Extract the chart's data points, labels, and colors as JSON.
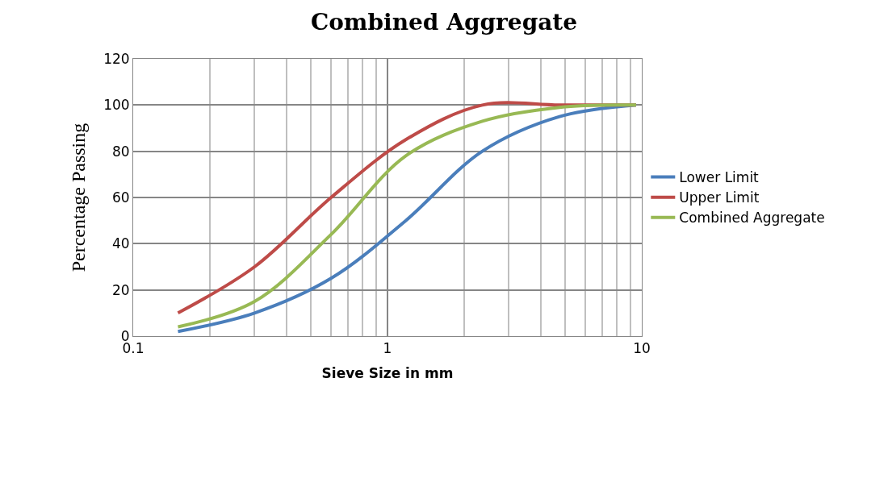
{
  "chart_data": {
    "type": "line",
    "title": "Combined Aggregate",
    "xlabel": "Sieve Size in mm",
    "ylabel": "Percentage Passing",
    "x": [
      0.15,
      0.3,
      0.6,
      1.18,
      2.36,
      4.75,
      9.5
    ],
    "series": [
      {
        "name": "Lower Limit",
        "color": "#4a7ebb",
        "values": [
          2,
          10,
          25,
          50,
          80,
          95,
          100
        ]
      },
      {
        "name": "Upper Limit",
        "color": "#be4b48",
        "values": [
          10,
          30,
          60,
          85,
          100,
          100,
          100
        ]
      },
      {
        "name": "Combined Aggregate",
        "color": "#98b954",
        "values": [
          4,
          15,
          44,
          78,
          93,
          99,
          100
        ]
      }
    ],
    "log": "x",
    "xlim": [
      0.1,
      10
    ],
    "xticks": [
      0.1,
      1,
      10
    ],
    "ylim": [
      0,
      120
    ],
    "yticks": [
      0,
      20,
      40,
      60,
      80,
      100,
      120
    ],
    "grid": true,
    "legend": "right",
    "marker": "none",
    "line_style": "solid"
  }
}
